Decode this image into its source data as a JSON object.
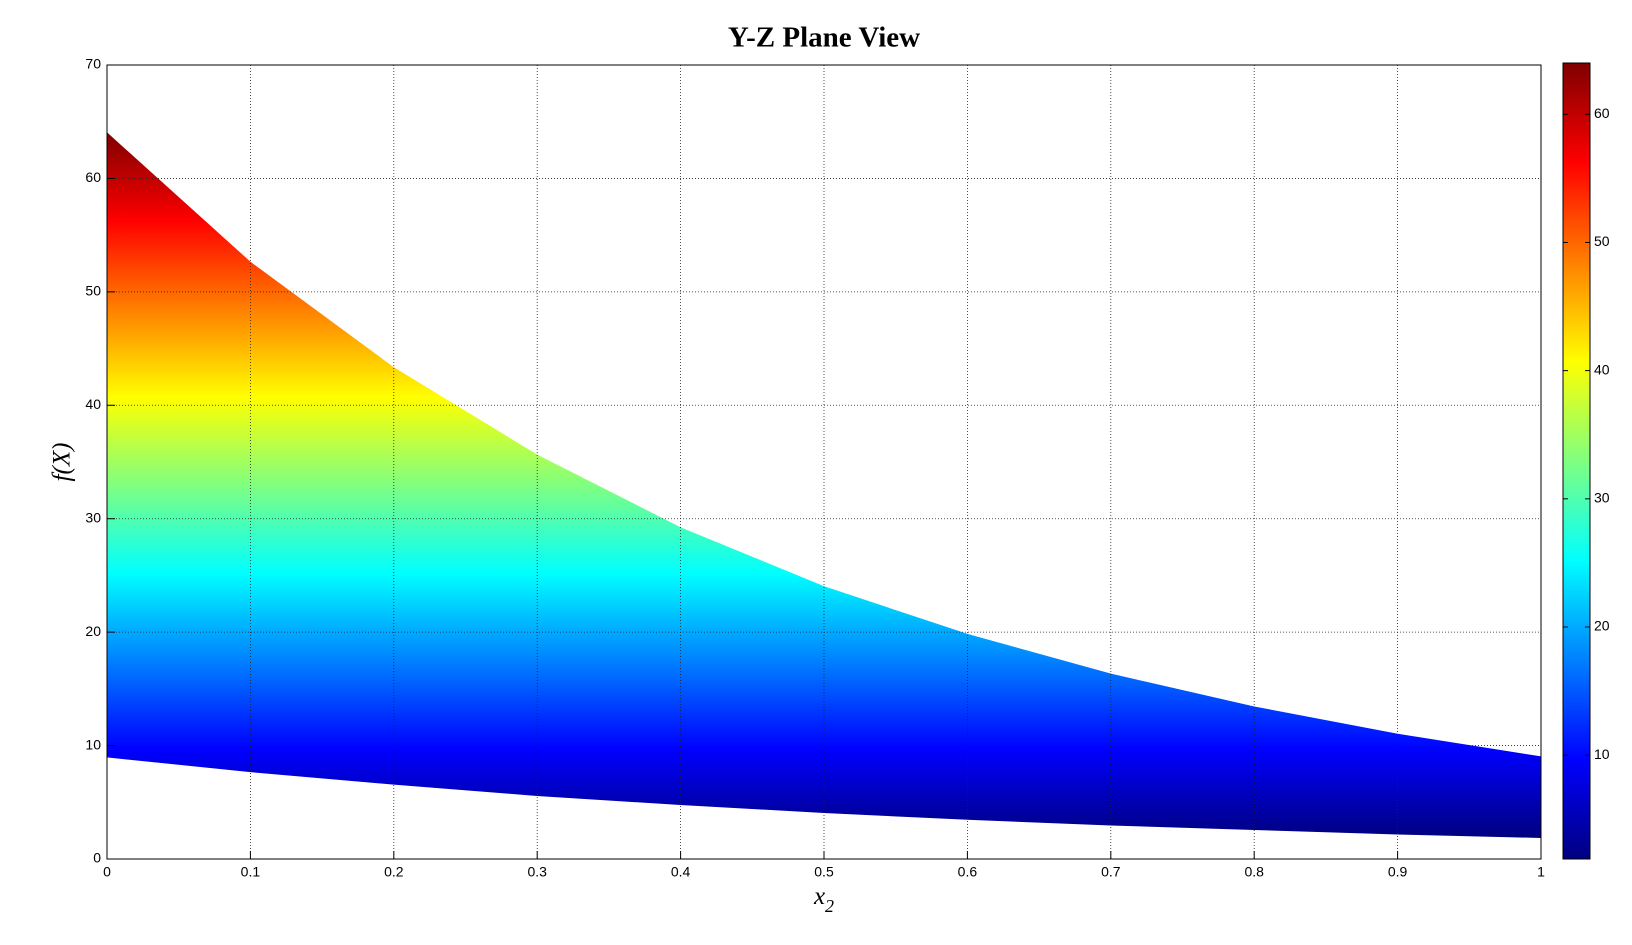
{
  "chart_data": {
    "type": "band",
    "title": "Y-Z Plane View",
    "xlabel": "x",
    "xlabel_subscript": "2",
    "ylabel": "f(X)",
    "x": [
      0,
      0.1,
      0.2,
      0.3,
      0.4,
      0.5,
      0.6,
      0.7,
      0.8,
      0.9,
      1
    ],
    "series": [
      {
        "values": [
          64,
          52.6,
          43.3,
          35.6,
          29.2,
          24.0,
          19.8,
          16.3,
          13.4,
          11.0,
          9.0
        ]
      },
      {
        "values": [
          9.0,
          7.7,
          6.6,
          5.6,
          4.8,
          4.1,
          3.5,
          3.0,
          2.6,
          2.2,
          1.9
        ]
      }
    ],
    "xlim": [
      0,
      1
    ],
    "xticks": [
      0,
      0.1,
      0.2,
      0.3,
      0.4,
      0.5,
      0.6,
      0.7,
      0.8,
      0.9,
      1
    ],
    "ylim": [
      0,
      70
    ],
    "yticks": [
      0,
      10,
      20,
      30,
      40,
      50,
      60,
      70
    ],
    "grid": true,
    "colormap": "jet",
    "clim": [
      1.9,
      64
    ],
    "cticks": [
      10,
      20,
      30,
      40,
      50,
      60
    ]
  }
}
